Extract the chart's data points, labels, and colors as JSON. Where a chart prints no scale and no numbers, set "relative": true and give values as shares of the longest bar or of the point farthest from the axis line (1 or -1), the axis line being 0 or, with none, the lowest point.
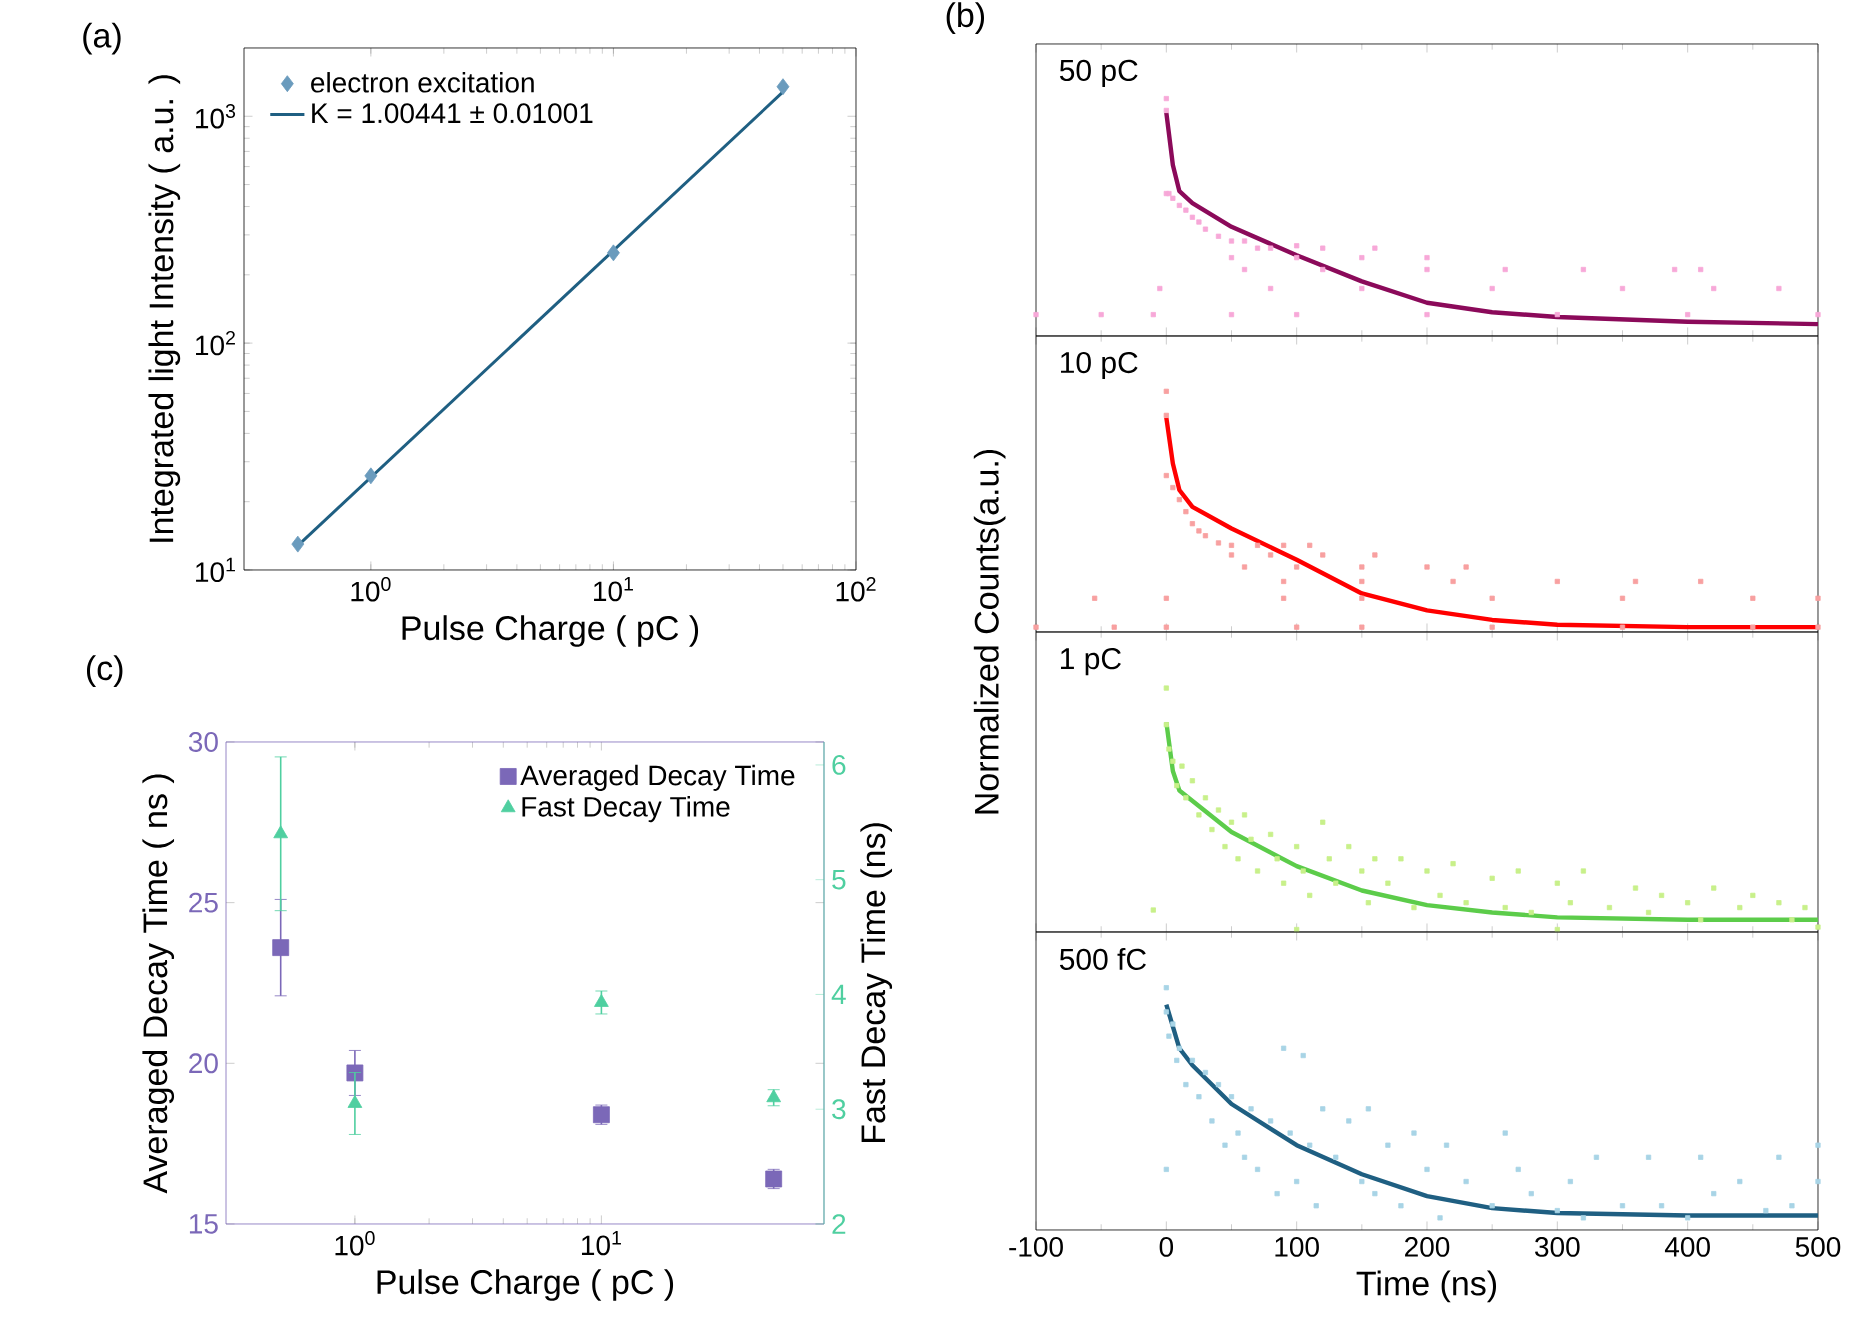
{
  "chart_data": [
    {
      "type": "scatter",
      "title": "(a)",
      "xlabel": "Pulse Charge ( pC )",
      "ylabel": "Integrated light Intensity ( a.u. )",
      "log": "xy",
      "legend": "top left",
      "xlim": [
        0.3,
        100
      ],
      "ylim": [
        10,
        2000
      ],
      "xticks": [
        {
          "value": 1,
          "label": "10$^{0}$"
        },
        {
          "value": 10,
          "label": "10$^{1}$"
        },
        {
          "value": 100,
          "label": "10$^{2}$"
        }
      ],
      "yticks": [
        {
          "value": 10,
          "label": "10$^{1}$"
        },
        {
          "value": 100,
          "label": "10$^{2}$"
        },
        {
          "value": 1000,
          "label": "10$^{3}$"
        }
      ],
      "series": [
        {
          "name": "electron excitation",
          "type": "scatter",
          "marker": "diamond",
          "color": "#6a9bbd",
          "x": [
            0.5,
            1,
            10,
            50
          ],
          "values": [
            13,
            26,
            250,
            1350
          ]
        },
        {
          "name": "K = 1.00441 ± 0.01001",
          "type": "line",
          "marker": "none",
          "color": "#1f5f82",
          "x": [
            0.5,
            50
          ],
          "values": [
            12.8,
            1280
          ]
        }
      ]
    },
    {
      "type": "scatter",
      "title": "(b)",
      "relative": true,
      "tick_labels": false,
      "annotations": [
        "50 pC"
      ],
      "xlim": [
        -100,
        500
      ],
      "xticks": [
        -100,
        0,
        100,
        200,
        300,
        400,
        500
      ],
      "series": [
        {
          "type": "scatter",
          "marker": "square",
          "color": "#f7a8d8",
          "x": [
            0,
            0,
            0,
            2,
            5,
            10,
            15,
            20,
            25,
            30,
            40,
            50,
            60,
            70,
            80,
            100,
            120,
            160,
            50,
            100,
            150,
            200,
            60,
            120,
            200,
            260,
            320,
            390,
            410,
            80,
            150,
            250,
            350,
            420,
            470,
            -100,
            -50,
            -10,
            -5,
            50,
            100,
            200,
            300,
            400,
            500
          ],
          "values": [
            1.0,
            0.95,
            0.6,
            0.6,
            0.58,
            0.55,
            0.53,
            0.5,
            0.48,
            0.45,
            0.42,
            0.4,
            0.4,
            0.37,
            0.37,
            0.38,
            0.37,
            0.37,
            0.33,
            0.33,
            0.33,
            0.33,
            0.28,
            0.28,
            0.28,
            0.28,
            0.28,
            0.28,
            0.28,
            0.2,
            0.2,
            0.2,
            0.2,
            0.2,
            0.2,
            0.09,
            0.09,
            0.09,
            0.2,
            0.09,
            0.09,
            0.09,
            0.09,
            0.09,
            0.09
          ]
        },
        {
          "type": "line",
          "marker": "none",
          "color": "#8b0a5a",
          "x": [
            0,
            5,
            10,
            20,
            50,
            100,
            150,
            200,
            250,
            300,
            400,
            500
          ],
          "values": [
            0.94,
            0.72,
            0.61,
            0.56,
            0.46,
            0.34,
            0.23,
            0.14,
            0.1,
            0.08,
            0.06,
            0.05
          ]
        }
      ]
    },
    {
      "type": "scatter",
      "relative": true,
      "tick_labels": false,
      "annotations": [
        "10 pC"
      ],
      "xlim": [
        -100,
        500
      ],
      "xticks": [
        -100,
        0,
        100,
        200,
        300,
        400,
        500
      ],
      "series": [
        {
          "type": "scatter",
          "marker": "square",
          "color": "#f8a0a0",
          "x": [
            0,
            0,
            0,
            5,
            10,
            15,
            20,
            25,
            30,
            40,
            50,
            70,
            90,
            110,
            50,
            80,
            120,
            160,
            60,
            100,
            150,
            200,
            230,
            90,
            150,
            220,
            300,
            360,
            410,
            90,
            150,
            250,
            350,
            450,
            500,
            -55,
            0,
            -100,
            -40,
            0,
            100,
            150,
            250,
            350,
            450,
            500
          ],
          "values": [
            1.0,
            0.9,
            0.65,
            0.6,
            0.55,
            0.5,
            0.45,
            0.42,
            0.4,
            0.37,
            0.36,
            0.36,
            0.36,
            0.36,
            0.32,
            0.32,
            0.32,
            0.32,
            0.27,
            0.27,
            0.27,
            0.27,
            0.27,
            0.21,
            0.21,
            0.21,
            0.21,
            0.21,
            0.21,
            0.14,
            0.14,
            0.14,
            0.14,
            0.14,
            0.14,
            0.14,
            0.14,
            0.02,
            0.02,
            0.02,
            0.02,
            0.02,
            0.02,
            0.02,
            0.02,
            0.02
          ]
        },
        {
          "type": "line",
          "marker": "none",
          "color": "#ff0000",
          "x": [
            0,
            5,
            10,
            20,
            50,
            100,
            150,
            200,
            250,
            300,
            400,
            500
          ],
          "values": [
            0.89,
            0.7,
            0.59,
            0.52,
            0.43,
            0.3,
            0.16,
            0.09,
            0.05,
            0.03,
            0.02,
            0.02
          ]
        }
      ]
    },
    {
      "type": "scatter",
      "ylabel": "Normalized Counts(a.u.)",
      "relative": true,
      "tick_labels": false,
      "annotations": [
        "1 pC"
      ],
      "xlim": [
        -100,
        500
      ],
      "xticks": [
        -100,
        0,
        100,
        200,
        300,
        400,
        500
      ],
      "series": [
        {
          "type": "scatter",
          "marker": "square",
          "color": "#c8f08a",
          "x": [
            0,
            0,
            2,
            5,
            8,
            12,
            15,
            20,
            25,
            30,
            35,
            40,
            45,
            50,
            55,
            60,
            65,
            70,
            80,
            85,
            90,
            100,
            105,
            110,
            120,
            125,
            130,
            140,
            150,
            155,
            160,
            170,
            180,
            190,
            200,
            210,
            220,
            230,
            250,
            260,
            270,
            280,
            300,
            310,
            320,
            340,
            360,
            370,
            380,
            400,
            410,
            420,
            440,
            450,
            470,
            480,
            490,
            500,
            -10,
            100,
            300
          ],
          "values": [
            1.0,
            0.85,
            0.75,
            0.7,
            0.6,
            0.68,
            0.55,
            0.62,
            0.48,
            0.55,
            0.42,
            0.5,
            0.35,
            0.45,
            0.3,
            0.48,
            0.38,
            0.25,
            0.4,
            0.3,
            0.2,
            0.35,
            0.25,
            0.15,
            0.45,
            0.3,
            0.2,
            0.35,
            0.25,
            0.12,
            0.3,
            0.2,
            0.3,
            0.1,
            0.25,
            0.15,
            0.28,
            0.12,
            0.22,
            0.1,
            0.25,
            0.08,
            0.2,
            0.12,
            0.25,
            0.1,
            0.18,
            0.08,
            0.15,
            0.12,
            0.05,
            0.18,
            0.1,
            0.15,
            0.12,
            0.05,
            0.1,
            0.02,
            0.09,
            0.01,
            0.01
          ]
        },
        {
          "type": "line",
          "marker": "none",
          "color": "#5ccc4a",
          "x": [
            0,
            5,
            10,
            50,
            100,
            150,
            200,
            250,
            300,
            400,
            500
          ],
          "values": [
            0.86,
            0.66,
            0.58,
            0.41,
            0.27,
            0.17,
            0.11,
            0.08,
            0.06,
            0.05,
            0.05
          ]
        }
      ]
    },
    {
      "type": "scatter",
      "xlabel": "Time (ns)",
      "relative": true,
      "tick_labels": "x",
      "annotations": [
        "500 fC"
      ],
      "xlim": [
        -100,
        500
      ],
      "xticks": [
        -100,
        0,
        100,
        200,
        300,
        400,
        500
      ],
      "series": [
        {
          "type": "scatter",
          "marker": "square",
          "color": "#a8d4e6",
          "x": [
            0,
            0,
            0,
            2,
            5,
            8,
            10,
            15,
            20,
            25,
            30,
            35,
            40,
            45,
            50,
            55,
            60,
            65,
            70,
            80,
            85,
            90,
            95,
            100,
            105,
            110,
            115,
            120,
            130,
            140,
            150,
            155,
            160,
            170,
            180,
            190,
            200,
            210,
            215,
            230,
            250,
            260,
            270,
            280,
            300,
            310,
            320,
            330,
            350,
            370,
            380,
            400,
            410,
            420,
            440,
            460,
            470,
            480,
            500,
            500
          ],
          "values": [
            1.0,
            0.9,
            0.25,
            0.8,
            0.85,
            0.7,
            0.75,
            0.6,
            0.7,
            0.55,
            0.65,
            0.45,
            0.6,
            0.35,
            0.55,
            0.4,
            0.3,
            0.5,
            0.25,
            0.45,
            0.15,
            0.75,
            0.4,
            0.2,
            0.72,
            0.35,
            0.1,
            0.5,
            0.3,
            0.45,
            0.2,
            0.5,
            0.15,
            0.35,
            0.1,
            0.4,
            0.25,
            0.05,
            0.35,
            0.2,
            0.1,
            0.4,
            0.25,
            0.15,
            0.08,
            0.2,
            0.05,
            0.3,
            0.1,
            0.3,
            0.1,
            0.05,
            0.3,
            0.15,
            0.2,
            0.08,
            0.3,
            0.1,
            0.2,
            0.35
          ]
        },
        {
          "type": "line",
          "marker": "none",
          "color": "#1f5f82",
          "x": [
            0,
            10,
            20,
            50,
            100,
            150,
            200,
            250,
            300,
            400,
            500
          ],
          "values": [
            0.93,
            0.75,
            0.68,
            0.52,
            0.35,
            0.23,
            0.14,
            0.09,
            0.07,
            0.06,
            0.06
          ]
        }
      ]
    },
    {
      "type": "scatter",
      "title": "(c)",
      "xlabel": "Pulse Charge ( pC )",
      "ylabel": "Averaged Decay Time ( ns )",
      "y2label": "Fast Decay Time (ns)",
      "log": "x",
      "legend": "top right",
      "xlim": [
        0.3,
        80
      ],
      "ylim": [
        15,
        30
      ],
      "y2lim": [
        2,
        6.2
      ],
      "xticks": [
        {
          "value": 1,
          "label": "10$^{0}$"
        },
        {
          "value": 10,
          "label": "10$^{1}$"
        }
      ],
      "yticks": [
        15,
        20,
        25,
        30
      ],
      "y2ticks": [
        2,
        3,
        4,
        5,
        6
      ],
      "series": [
        {
          "name": "Averaged Decay Time",
          "type": "scatter",
          "marker": "square",
          "color": "#7b68b8",
          "x": [
            0.5,
            1,
            10,
            50
          ],
          "values": [
            23.6,
            19.7,
            18.4,
            16.4
          ],
          "errors": [
            1.5,
            0.7,
            0.3,
            0.3
          ]
        },
        {
          "name": "Fast Decay Time",
          "type": "scatter",
          "marker": "triangle",
          "axis": "y2",
          "color": "#4fcfa0",
          "x": [
            0.5,
            1,
            10,
            50
          ],
          "values": [
            5.4,
            3.05,
            3.93,
            3.1
          ],
          "errors": [
            0.67,
            0.27,
            0.1,
            0.07
          ]
        }
      ]
    }
  ]
}
